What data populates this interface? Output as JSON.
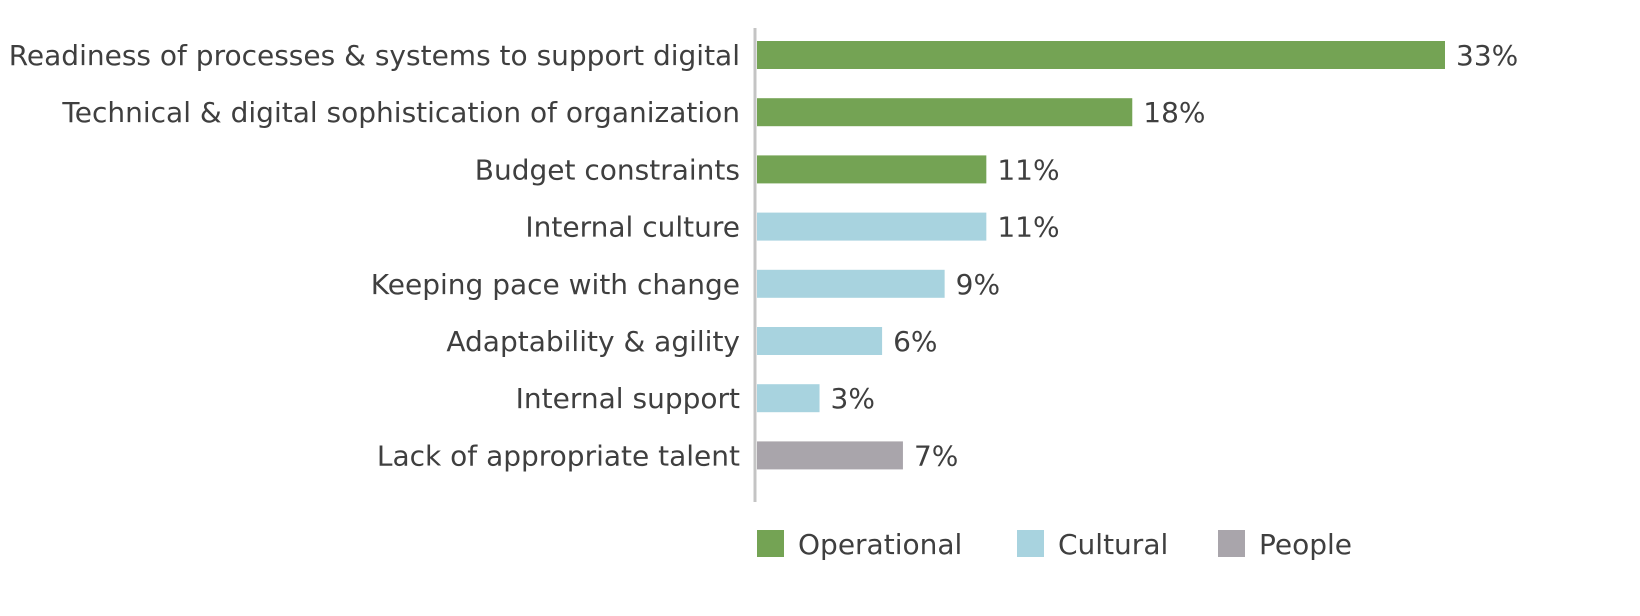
{
  "chart_data": {
    "type": "bar",
    "orientation": "horizontal",
    "categories": [
      "Readiness of processes & systems to support digital",
      "Technical & digital sophistication of organization",
      "Budget constraints",
      "Internal culture",
      "Keeping pace with change",
      "Adaptability & agility",
      "Internal support",
      "Lack of appropriate talent"
    ],
    "values": [
      33,
      18,
      11,
      11,
      9,
      6,
      3,
      7
    ],
    "value_labels": [
      "33%",
      "18%",
      "11%",
      "11%",
      "9%",
      "6%",
      "3%",
      "7%"
    ],
    "groups": [
      "Operational",
      "Operational",
      "Operational",
      "Cultural",
      "Cultural",
      "Cultural",
      "Cultural",
      "People"
    ],
    "series": [
      {
        "name": "Operational",
        "color": "#74a354"
      },
      {
        "name": "Cultural",
        "color": "#a8d3df"
      },
      {
        "name": "People",
        "color": "#a9a5ab"
      }
    ],
    "title": "",
    "xlabel": "",
    "ylabel": "",
    "xlim": [
      0,
      33
    ],
    "grid": false,
    "legend_position": "bottom",
    "axis_color": "#c4c4c4"
  }
}
